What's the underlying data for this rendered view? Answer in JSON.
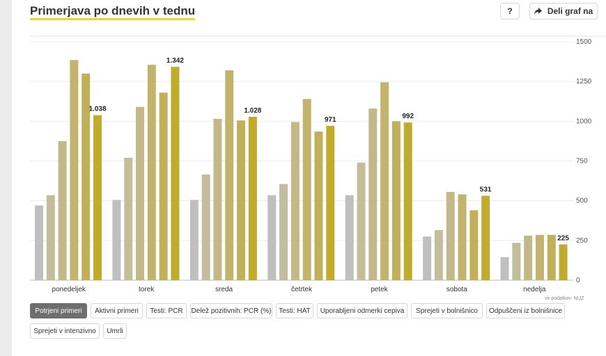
{
  "header": {
    "title": "Primerjava po dnevih v tednu",
    "help_label": "?",
    "share_label": "Deli graf na"
  },
  "source": "vir podatkov: NIJZ",
  "tabs": [
    {
      "label": "Potrjeni primeri",
      "active": true
    },
    {
      "label": "Aktivni primeri",
      "active": false
    },
    {
      "label": "Testi: PCR",
      "active": false
    },
    {
      "label": "Delež pozitivnih: PCR (%)",
      "active": false
    },
    {
      "label": "Testi: HAT",
      "active": false
    },
    {
      "label": "Uporabljeni odmerki cepiva",
      "active": false
    },
    {
      "label": "Sprejeti v bolnišnico",
      "active": false
    },
    {
      "label": "Odpuščeni iz bolnišnice",
      "active": false
    },
    {
      "label": "Sprejeti v intenzivno",
      "active": false
    },
    {
      "label": "Umrli",
      "active": false
    }
  ],
  "chart_data": {
    "type": "bar",
    "categories": [
      "ponedeljek",
      "torek",
      "sreda",
      "četrtek",
      "petek",
      "sobota",
      "nedelja"
    ],
    "ylim": [
      0,
      1500
    ],
    "yticks": [
      0,
      250,
      500,
      750,
      1000,
      1250,
      1500
    ],
    "ytick_labels": [
      "0",
      "250",
      "500",
      "750",
      "1000",
      "1250",
      "1500"
    ],
    "grid": true,
    "y_axis_position": "right",
    "series_colors": [
      "#c0bfbf",
      "#c4bd9c",
      "#c2b888",
      "#c2b46f",
      "#c1b05a",
      "#c1ab2d"
    ],
    "series": [
      {
        "values": [
          470,
          505,
          505,
          535,
          535,
          275,
          145
        ]
      },
      {
        "values": [
          535,
          770,
          665,
          605,
          740,
          315,
          235
        ]
      },
      {
        "values": [
          875,
          1090,
          1015,
          995,
          1080,
          555,
          280
        ]
      },
      {
        "values": [
          1385,
          1355,
          1320,
          1140,
          1245,
          540,
          285
        ]
      },
      {
        "values": [
          1300,
          1180,
          1005,
          935,
          1000,
          440,
          285
        ]
      },
      {
        "values": [
          1038,
          1342,
          1028,
          971,
          992,
          531,
          225
        ]
      }
    ],
    "data_labels": [
      "1.038",
      "1.342",
      "1.028",
      "971",
      "992",
      "531",
      "225"
    ]
  }
}
